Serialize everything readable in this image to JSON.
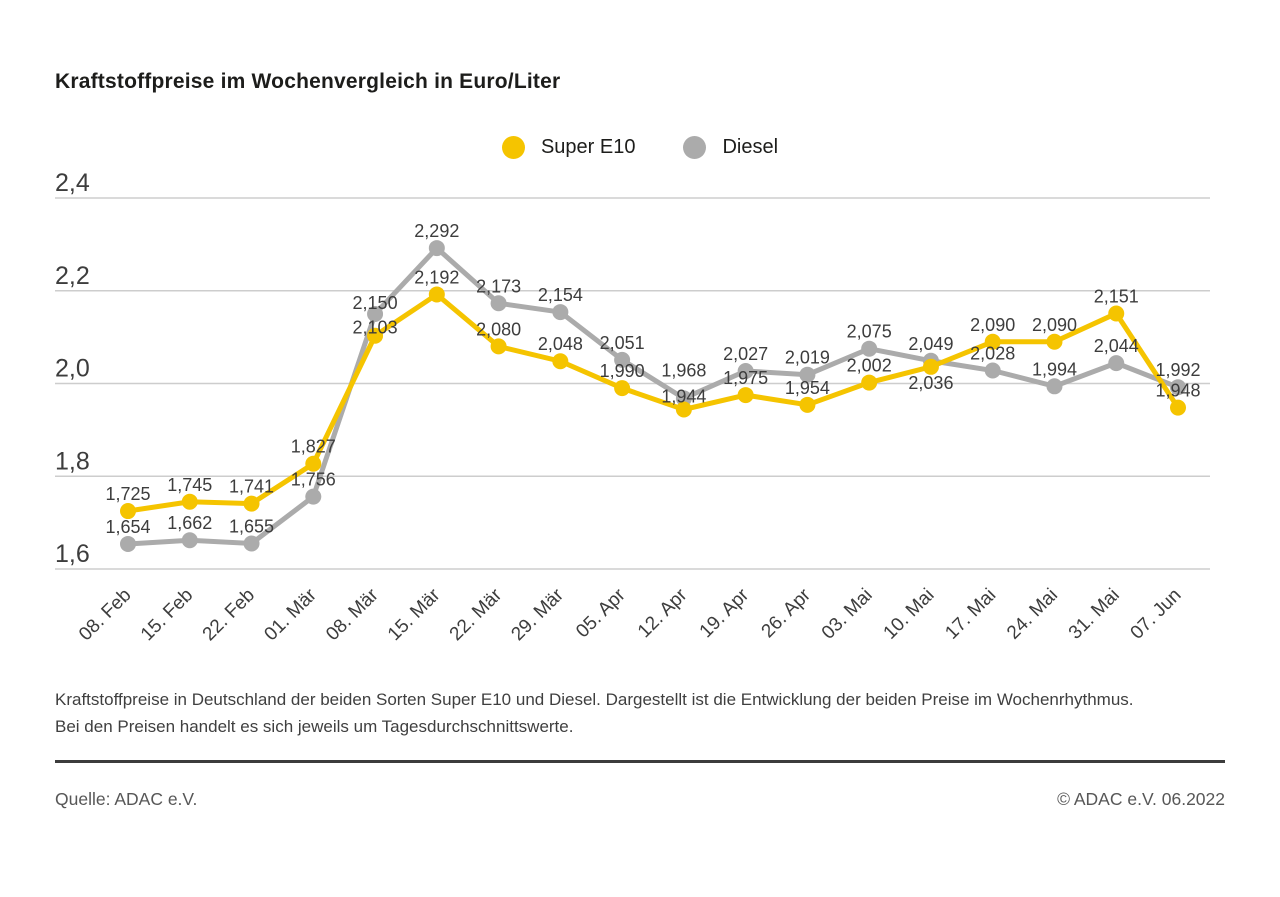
{
  "header": {
    "title": "Kraftstoffpreise im Wochenvergleich in Euro/Liter"
  },
  "legend": [
    {
      "label": "Super E10",
      "color": "#F5C400"
    },
    {
      "label": "Diesel",
      "color": "#ABABAB"
    }
  ],
  "chart_data": {
    "type": "line",
    "title": "Kraftstoffpreise im Wochenvergleich in Euro/Liter",
    "xlabel": "",
    "ylabel": "Euro/Liter",
    "ylim": [
      1.6,
      2.4
    ],
    "grid": true,
    "legend_position": "top-center",
    "categories": [
      "08. Feb",
      "15. Feb",
      "22. Feb",
      "01. Mär",
      "08. Mär",
      "15. Mär",
      "22. Mär",
      "29. Mär",
      "05. Apr",
      "12. Apr",
      "19. Apr",
      "26. Apr",
      "03. Mai",
      "10. Mai",
      "17. Mai",
      "24. Mai",
      "31. Mai",
      "07. Jun"
    ],
    "yticks": {
      "values": [
        2.4,
        2.2,
        2.0,
        1.8,
        1.6
      ],
      "labels": [
        "2,4",
        "2,2",
        "2,0",
        "1,8",
        "1,6"
      ]
    },
    "series": [
      {
        "name": "Super E10",
        "color": "#F5C400",
        "values": [
          1.725,
          1.745,
          1.741,
          1.827,
          2.103,
          2.192,
          2.08,
          2.048,
          1.99,
          1.944,
          1.975,
          1.954,
          2.002,
          2.036,
          2.09,
          2.09,
          2.151,
          1.948
        ],
        "labels": [
          "1,725",
          "1,745",
          "1,741",
          "1,827",
          "2,103",
          "2,192",
          "2,080",
          "2,048",
          "1,990",
          "1,944",
          "1,975",
          "1,954",
          "2,002",
          "2,036",
          "2,090",
          "2,090",
          "2,151",
          "1,948"
        ]
      },
      {
        "name": "Diesel",
        "color": "#ABABAB",
        "values": [
          1.654,
          1.662,
          1.655,
          1.756,
          2.15,
          2.292,
          2.173,
          2.154,
          2.051,
          1.968,
          2.027,
          2.019,
          2.075,
          2.049,
          2.028,
          1.994,
          2.044,
          1.992
        ],
        "labels": [
          "1,654",
          "1,662",
          "1,655",
          "1,756",
          "2,150",
          "2,292",
          "2,173",
          "2,154",
          "2,051",
          "1,968",
          "2,027",
          "2,019",
          "2,075",
          "2,049",
          "2,028",
          "1,994",
          "2,044",
          "1,992"
        ]
      }
    ],
    "label_dy_overrides": {
      "Super E10": {
        "4": -2,
        "9": -7,
        "13": 22
      },
      "Diesel": {
        "4": -5,
        "9": -22
      }
    }
  },
  "description": "Kraftstoffpreise in Deutschland der beiden Sorten Super E10 und Diesel. Dargestellt ist die Entwicklung der beiden Preise im Wochenrhythmus. Bei den Preisen handelt es sich jeweils um Tagesdurchschnittswerte.",
  "footer": {
    "source": "Quelle: ADAC e.V.",
    "copyright": "© ADAC e.V. 06.2022"
  }
}
